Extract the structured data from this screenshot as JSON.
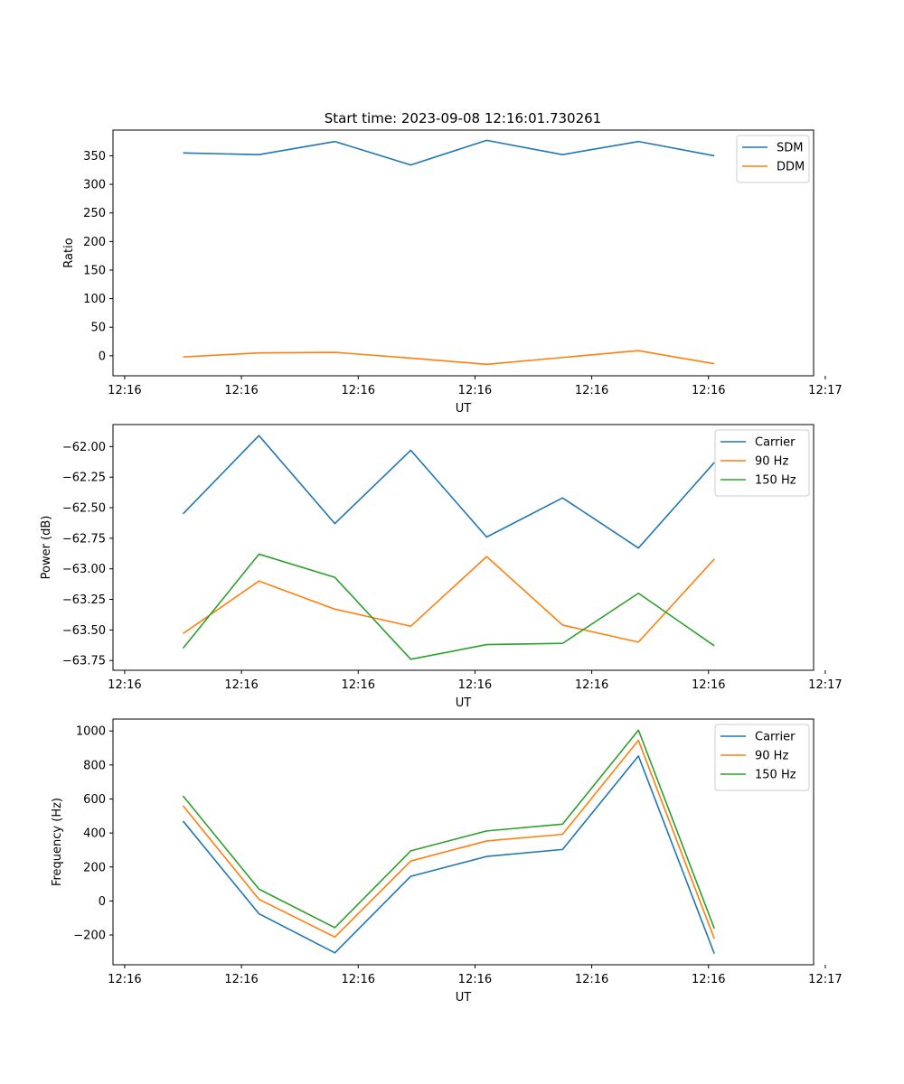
{
  "figure_title": "Start time: 2023-09-08 12:16:01.730261",
  "chart_data": [
    {
      "type": "line",
      "title": "Start time: 2023-09-08 12:16:01.730261",
      "xlabel": "UT",
      "ylabel": "Ratio",
      "x": [
        0.5,
        1.15,
        1.8,
        2.45,
        3.1,
        3.75,
        4.4,
        5.05
      ],
      "xlim": [
        -0.1,
        5.9
      ],
      "xticks": [
        0,
        1,
        2,
        3,
        4,
        5,
        6
      ],
      "xtick_labels": [
        "12:16",
        "12:16",
        "12:16",
        "12:16",
        "12:16",
        "12:16",
        "12:17"
      ],
      "ylim": [
        -35,
        395
      ],
      "yticks": [
        0,
        50,
        100,
        150,
        200,
        250,
        300,
        350
      ],
      "ytick_labels": [
        "0",
        "50",
        "100",
        "150",
        "200",
        "250",
        "300",
        "350"
      ],
      "legend_position": "top-right",
      "series": [
        {
          "name": "SDM",
          "color": "#1f77b4",
          "values": [
            355,
            352,
            375,
            334,
            377,
            352,
            375,
            350
          ]
        },
        {
          "name": "DDM",
          "color": "#ff7f0e",
          "values": [
            -2,
            5,
            6,
            -4,
            -15,
            -3,
            9,
            -14
          ]
        }
      ]
    },
    {
      "type": "line",
      "xlabel": "UT",
      "ylabel": "Power (dB)",
      "x": [
        0.5,
        1.15,
        1.8,
        2.45,
        3.1,
        3.75,
        4.4,
        5.05
      ],
      "xlim": [
        -0.1,
        5.9
      ],
      "xticks": [
        0,
        1,
        2,
        3,
        4,
        5,
        6
      ],
      "xtick_labels": [
        "12:16",
        "12:16",
        "12:16",
        "12:16",
        "12:16",
        "12:16",
        "12:17"
      ],
      "ylim": [
        -63.83,
        -61.82
      ],
      "yticks": [
        -63.75,
        -63.5,
        -63.25,
        -63.0,
        -62.75,
        -62.5,
        -62.25,
        -62.0
      ],
      "ytick_labels": [
        "−63.75",
        "−63.50",
        "−63.25",
        "−63.00",
        "−62.75",
        "−62.50",
        "−62.25",
        "−62.00"
      ],
      "legend_position": "top-right",
      "series": [
        {
          "name": "Carrier",
          "color": "#1f77b4",
          "values": [
            -62.55,
            -61.91,
            -62.63,
            -62.03,
            -62.74,
            -62.42,
            -62.83,
            -62.13
          ]
        },
        {
          "name": "90 Hz",
          "color": "#ff7f0e",
          "values": [
            -63.53,
            -63.1,
            -63.33,
            -63.47,
            -62.9,
            -63.46,
            -63.6,
            -62.92
          ]
        },
        {
          "name": "150 Hz",
          "color": "#2ca02c",
          "values": [
            -63.65,
            -62.88,
            -63.07,
            -63.74,
            -63.62,
            -63.61,
            -63.2,
            -63.63
          ]
        }
      ]
    },
    {
      "type": "line",
      "xlabel": "UT",
      "ylabel": "Frequency (Hz)",
      "x": [
        0.5,
        1.15,
        1.8,
        2.45,
        3.1,
        3.75,
        4.4,
        5.05
      ],
      "xlim": [
        -0.1,
        5.9
      ],
      "xticks": [
        0,
        1,
        2,
        3,
        4,
        5,
        6
      ],
      "xtick_labels": [
        "12:16",
        "12:16",
        "12:16",
        "12:16",
        "12:16",
        "12:16",
        "12:17"
      ],
      "ylim": [
        -375,
        1070
      ],
      "yticks": [
        -200,
        0,
        200,
        400,
        600,
        800,
        1000
      ],
      "ytick_labels": [
        "−200",
        "0",
        "200",
        "400",
        "600",
        "800",
        "1000"
      ],
      "legend_position": "top-right",
      "series": [
        {
          "name": "Carrier",
          "color": "#1f77b4",
          "values": [
            470,
            -75,
            -305,
            145,
            262,
            303,
            853,
            -310
          ]
        },
        {
          "name": "90 Hz",
          "color": "#ff7f0e",
          "values": [
            560,
            10,
            -212,
            235,
            353,
            392,
            945,
            -222
          ]
        },
        {
          "name": "150 Hz",
          "color": "#2ca02c",
          "values": [
            618,
            70,
            -157,
            295,
            412,
            452,
            1005,
            -162
          ]
        }
      ]
    }
  ]
}
